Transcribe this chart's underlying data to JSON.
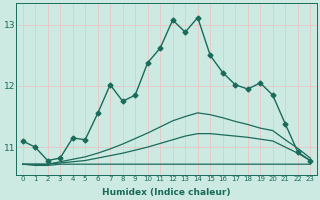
{
  "xlabel": "Humidex (Indice chaleur)",
  "ylabel": "",
  "xlim": [
    -0.5,
    23.5
  ],
  "ylim": [
    10.55,
    13.35
  ],
  "yticks": [
    11,
    12,
    13
  ],
  "xticks": [
    0,
    1,
    2,
    3,
    4,
    5,
    6,
    7,
    8,
    9,
    10,
    11,
    12,
    13,
    14,
    15,
    16,
    17,
    18,
    19,
    20,
    21,
    22,
    23
  ],
  "bg_color": "#cce9e2",
  "grid_color": "#e8c8c8",
  "line_color": "#1a6b5a",
  "lines": [
    {
      "x": [
        0,
        1,
        2,
        3,
        4,
        5,
        6,
        7,
        8,
        9,
        10,
        11,
        12,
        13,
        14,
        15,
        16,
        17,
        18,
        19,
        20,
        21,
        22,
        23
      ],
      "y": [
        11.1,
        11.0,
        10.78,
        10.82,
        11.15,
        11.12,
        11.55,
        12.02,
        11.75,
        11.85,
        12.38,
        12.62,
        13.08,
        12.88,
        13.12,
        12.5,
        12.22,
        12.02,
        11.95,
        12.05,
        11.85,
        11.38,
        10.92,
        10.78
      ],
      "marker": "D",
      "markersize": 2.5,
      "linewidth": 1.0
    },
    {
      "x": [
        0,
        1,
        2,
        3,
        4,
        5,
        6,
        7,
        8,
        9,
        10,
        11,
        12,
        13,
        14,
        15,
        16,
        17,
        18,
        19,
        20,
        21,
        22,
        23
      ],
      "y": [
        10.72,
        10.7,
        10.7,
        10.72,
        10.72,
        10.72,
        10.72,
        10.72,
        10.72,
        10.72,
        10.72,
        10.72,
        10.72,
        10.72,
        10.72,
        10.72,
        10.72,
        10.72,
        10.72,
        10.72,
        10.72,
        10.72,
        10.72,
        10.72
      ],
      "marker": null,
      "markersize": 0,
      "linewidth": 0.9
    },
    {
      "x": [
        0,
        1,
        2,
        3,
        4,
        5,
        6,
        7,
        8,
        9,
        10,
        11,
        12,
        13,
        14,
        15,
        16,
        17,
        18,
        19,
        20,
        21,
        22,
        23
      ],
      "y": [
        10.72,
        10.72,
        10.72,
        10.74,
        10.76,
        10.78,
        10.82,
        10.86,
        10.9,
        10.95,
        11.0,
        11.06,
        11.12,
        11.18,
        11.22,
        11.22,
        11.2,
        11.18,
        11.16,
        11.13,
        11.1,
        11.0,
        10.9,
        10.78
      ],
      "marker": null,
      "markersize": 0,
      "linewidth": 0.9
    },
    {
      "x": [
        0,
        1,
        2,
        3,
        4,
        5,
        6,
        7,
        8,
        9,
        10,
        11,
        12,
        13,
        14,
        15,
        16,
        17,
        18,
        19,
        20,
        21,
        22,
        23
      ],
      "y": [
        10.72,
        10.72,
        10.72,
        10.76,
        10.8,
        10.84,
        10.9,
        10.97,
        11.05,
        11.14,
        11.23,
        11.33,
        11.43,
        11.5,
        11.56,
        11.53,
        11.48,
        11.42,
        11.37,
        11.31,
        11.27,
        11.12,
        10.98,
        10.82
      ],
      "marker": null,
      "markersize": 0,
      "linewidth": 0.9
    }
  ]
}
